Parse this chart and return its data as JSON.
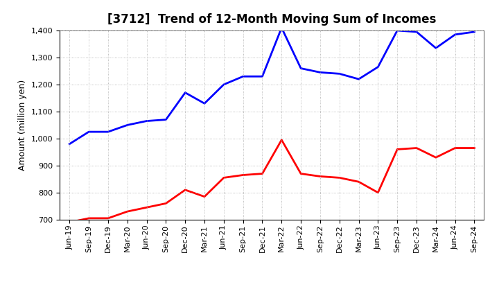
{
  "title": "[3712]  Trend of 12-Month Moving Sum of Incomes",
  "ylabel": "Amount (million yen)",
  "x_labels": [
    "Jun-19",
    "Sep-19",
    "Dec-19",
    "Mar-20",
    "Jun-20",
    "Sep-20",
    "Dec-20",
    "Mar-21",
    "Jun-21",
    "Sep-21",
    "Dec-21",
    "Mar-22",
    "Jun-22",
    "Sep-22",
    "Dec-22",
    "Mar-23",
    "Jun-23",
    "Sep-23",
    "Dec-23",
    "Mar-24",
    "Jun-24",
    "Sep-24"
  ],
  "ordinary_income": [
    980,
    1025,
    1025,
    1050,
    1065,
    1070,
    1170,
    1130,
    1200,
    1230,
    1230,
    1410,
    1260,
    1245,
    1240,
    1220,
    1265,
    1400,
    1395,
    1335,
    1385,
    1395
  ],
  "net_income": [
    690,
    705,
    705,
    730,
    745,
    760,
    810,
    785,
    855,
    865,
    870,
    995,
    870,
    860,
    855,
    840,
    800,
    960,
    965,
    930,
    965,
    965
  ],
  "ordinary_color": "#0000FF",
  "net_color": "#FF0000",
  "ylim_min": 700,
  "ylim_max": 1400,
  "yticks": [
    700,
    800,
    900,
    1000,
    1100,
    1200,
    1300,
    1400
  ],
  "background_color": "#FFFFFF",
  "grid_color": "#AAAAAA",
  "title_fontsize": 12,
  "ylabel_fontsize": 9,
  "tick_fontsize": 8,
  "legend_fontsize": 9,
  "linewidth": 2.0
}
